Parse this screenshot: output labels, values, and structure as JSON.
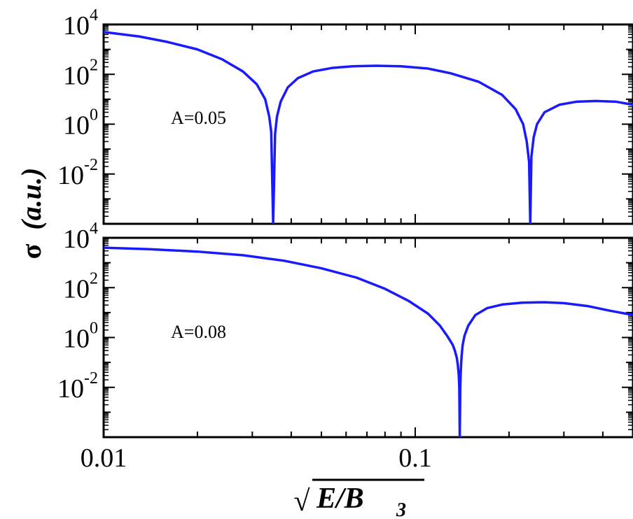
{
  "colors": {
    "curve": "#1a1aff",
    "axes": "#000000",
    "background": "#ffffff"
  },
  "ylabel": {
    "main": "σ",
    "paren": "(a.u.)"
  },
  "xlabel": {
    "sqrt": "√",
    "main": "E/B",
    "sub": "3"
  },
  "chart_data": [
    {
      "type": "line",
      "annotation": "A=0.05",
      "x_scale": "log",
      "y_scale": "log",
      "xlim": [
        0.01,
        0.5
      ],
      "ylim": [
        0.0001,
        10000
      ],
      "x_tick_labels": [],
      "y_ticks": [
        {
          "base": "10",
          "exp": "4"
        },
        {
          "base": "10",
          "exp": "2"
        },
        {
          "base": "10",
          "exp": "0"
        },
        {
          "base": "10",
          "exp": "-2"
        }
      ],
      "x": [
        0.01,
        0.013,
        0.016,
        0.02,
        0.024,
        0.028,
        0.031,
        0.033,
        0.034,
        0.0345,
        0.035,
        0.0355,
        0.036,
        0.037,
        0.039,
        0.042,
        0.047,
        0.054,
        0.063,
        0.075,
        0.09,
        0.11,
        0.13,
        0.16,
        0.19,
        0.21,
        0.222,
        0.228,
        0.232,
        0.234,
        0.236,
        0.24,
        0.246,
        0.26,
        0.29,
        0.33,
        0.38,
        0.44,
        0.5
      ],
      "y": [
        5000,
        3300,
        2000,
        1000,
        400,
        130,
        40,
        10,
        2,
        0.5,
        0.0001,
        0.4,
        2,
        8,
        30,
        70,
        130,
        180,
        210,
        220,
        210,
        170,
        110,
        50,
        15,
        4,
        1,
        0.2,
        0.03,
        0.0001,
        0.05,
        0.3,
        1,
        3,
        6,
        8,
        8.5,
        8,
        6
      ]
    },
    {
      "type": "line",
      "annotation": "A=0.08",
      "x_scale": "log",
      "y_scale": "log",
      "xlim": [
        0.01,
        0.5
      ],
      "ylim": [
        0.0001,
        10000
      ],
      "x_tick_labels": [
        "0.01",
        "0.1"
      ],
      "y_ticks": [
        {
          "base": "10",
          "exp": "4"
        },
        {
          "base": "10",
          "exp": "2"
        },
        {
          "base": "10",
          "exp": "0"
        },
        {
          "base": "10",
          "exp": "-2"
        }
      ],
      "x": [
        0.01,
        0.014,
        0.02,
        0.028,
        0.038,
        0.05,
        0.065,
        0.08,
        0.095,
        0.11,
        0.12,
        0.127,
        0.132,
        0.134,
        0.136,
        0.137,
        0.138,
        0.1385,
        0.139,
        0.1395,
        0.14,
        0.1405,
        0.141,
        0.142,
        0.144,
        0.148,
        0.156,
        0.17,
        0.19,
        0.22,
        0.26,
        0.3,
        0.36,
        0.42,
        0.5
      ],
      "y": [
        4000,
        3500,
        2800,
        2000,
        1200,
        600,
        250,
        90,
        30,
        9,
        3,
        1.1,
        0.5,
        0.3,
        0.15,
        0.08,
        0.03,
        0.01,
        0.0001,
        0.01,
        0.04,
        0.1,
        0.2,
        0.5,
        1.2,
        3,
        8,
        15,
        21,
        25,
        26,
        24,
        18,
        12,
        8
      ]
    }
  ]
}
